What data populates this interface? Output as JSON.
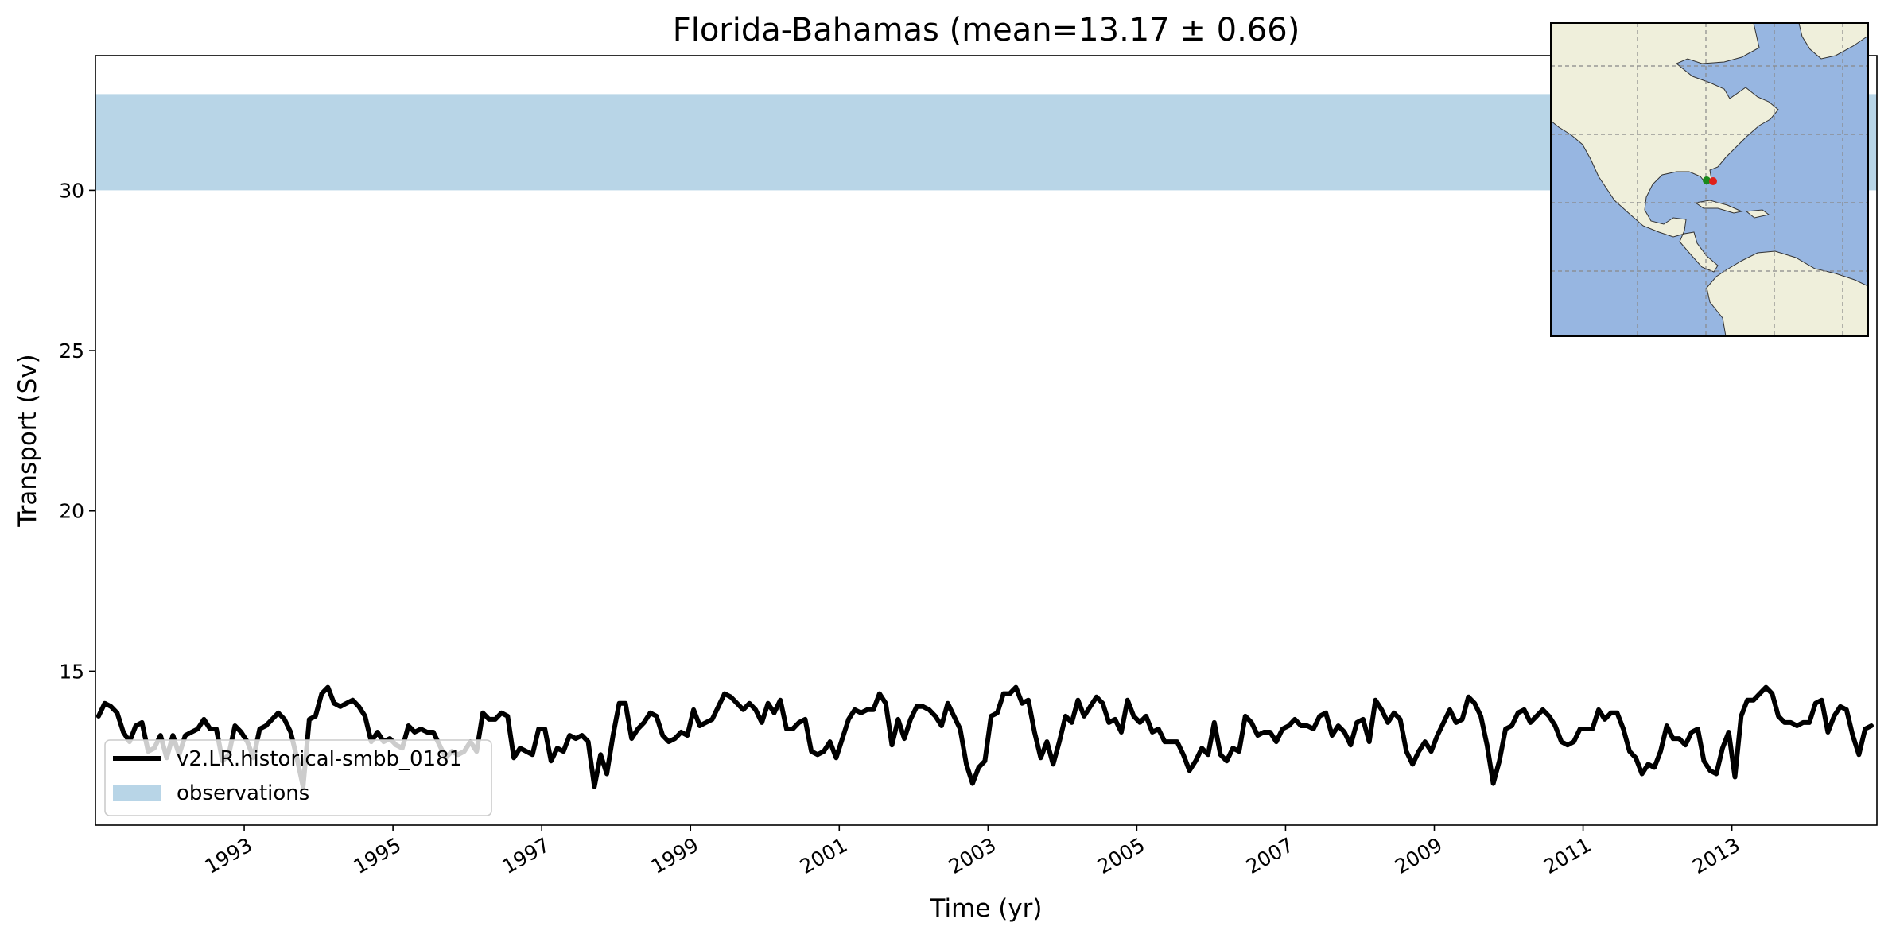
{
  "chart_data": {
    "type": "line",
    "title": "Florida-Bahamas (mean=13.17 ± 0.66)",
    "xlabel": "Time (yr)",
    "ylabel": "Transport (Sv)",
    "xlim": [
      1991.0,
      2014.95
    ],
    "ylim": [
      10.2,
      34.2
    ],
    "x_ticks": [
      1993,
      1995,
      1997,
      1999,
      2001,
      2003,
      2005,
      2007,
      2009,
      2011,
      2013
    ],
    "x_tick_labels": [
      "1993",
      "1995",
      "1997",
      "1999",
      "2001",
      "2003",
      "2005",
      "2007",
      "2009",
      "2011",
      "2013"
    ],
    "x_tick_rotation_deg": 30,
    "y_ticks": [
      15,
      20,
      25,
      30
    ],
    "y_tick_labels": [
      "15",
      "20",
      "25",
      "30"
    ],
    "grid": false,
    "legend": {
      "position": "lower-left"
    },
    "observations": {
      "name": "observations",
      "type": "band",
      "ymin": 30.0,
      "ymax": 33.0,
      "color": "#b8d5e7"
    },
    "series": [
      {
        "name": "v2.LR.historical-smbb_0181",
        "color": "#000000",
        "x_start": 1991.0417,
        "x_step": 0.0833333,
        "values": [
          13.6,
          14.0,
          13.9,
          13.7,
          13.1,
          12.8,
          13.3,
          13.4,
          12.5,
          12.6,
          13.0,
          12.3,
          13.0,
          12.4,
          13.0,
          13.1,
          13.2,
          13.5,
          13.2,
          13.2,
          12.2,
          12.4,
          13.3,
          13.1,
          12.8,
          12.3,
          13.2,
          13.3,
          13.5,
          13.7,
          13.5,
          13.1,
          12.3,
          11.4,
          13.5,
          13.6,
          14.3,
          14.5,
          14.0,
          13.9,
          14.0,
          14.1,
          13.9,
          13.6,
          12.8,
          13.1,
          12.8,
          12.9,
          12.7,
          12.6,
          13.3,
          13.1,
          13.2,
          13.1,
          13.1,
          12.7,
          12.3,
          12.5,
          12.4,
          12.5,
          12.8,
          12.5,
          13.7,
          13.5,
          13.5,
          13.7,
          13.6,
          12.3,
          12.6,
          12.5,
          12.4,
          13.2,
          13.2,
          12.2,
          12.6,
          12.5,
          13.0,
          12.9,
          13.0,
          12.8,
          11.4,
          12.4,
          11.8,
          13.0,
          14.0,
          14.0,
          12.9,
          13.2,
          13.4,
          13.7,
          13.6,
          13.0,
          12.8,
          12.9,
          13.1,
          13.0,
          13.8,
          13.3,
          13.4,
          13.5,
          13.9,
          14.3,
          14.2,
          14.0,
          13.8,
          14.0,
          13.8,
          13.4,
          14.0,
          13.7,
          14.1,
          13.2,
          13.2,
          13.4,
          13.5,
          12.5,
          12.4,
          12.5,
          12.8,
          12.3,
          12.9,
          13.5,
          13.8,
          13.7,
          13.8,
          13.8,
          14.3,
          14.0,
          12.7,
          13.5,
          12.9,
          13.5,
          13.9,
          13.9,
          13.8,
          13.6,
          13.3,
          14.0,
          13.6,
          13.2,
          12.1,
          11.5,
          12.0,
          12.2,
          13.6,
          13.7,
          14.3,
          14.3,
          14.5,
          14.0,
          14.1,
          13.1,
          12.3,
          12.8,
          12.1,
          12.8,
          13.6,
          13.4,
          14.1,
          13.6,
          13.9,
          14.2,
          14.0,
          13.4,
          13.5,
          13.1,
          14.1,
          13.6,
          13.4,
          13.6,
          13.1,
          13.2,
          12.8,
          12.8,
          12.8,
          12.4,
          11.9,
          12.2,
          12.6,
          12.4,
          13.4,
          12.4,
          12.2,
          12.6,
          12.5,
          13.6,
          13.4,
          13.0,
          13.1,
          13.1,
          12.8,
          13.2,
          13.3,
          13.5,
          13.3,
          13.3,
          13.2,
          13.6,
          13.7,
          13.0,
          13.3,
          13.1,
          12.7,
          13.4,
          13.5,
          12.8,
          14.1,
          13.8,
          13.4,
          13.7,
          13.5,
          12.5,
          12.1,
          12.5,
          12.8,
          12.5,
          13.0,
          13.4,
          13.8,
          13.4,
          13.5,
          14.2,
          14.0,
          13.6,
          12.7,
          11.5,
          12.2,
          13.2,
          13.3,
          13.7,
          13.8,
          13.4,
          13.6,
          13.8,
          13.6,
          13.3,
          12.8,
          12.7,
          12.8,
          13.2,
          13.2,
          13.2,
          13.8,
          13.5,
          13.7,
          13.7,
          13.2,
          12.5,
          12.3,
          11.8,
          12.1,
          12.0,
          12.5,
          13.3,
          12.9,
          12.9,
          12.7,
          13.1,
          13.2,
          12.2,
          11.9,
          11.8,
          12.6,
          13.1,
          11.7,
          13.6,
          14.1,
          14.1,
          14.3,
          14.5,
          14.3,
          13.6,
          13.4,
          13.4,
          13.3,
          13.4,
          13.4,
          14.0,
          14.1,
          13.1,
          13.6,
          13.9,
          13.8,
          13.0,
          12.4,
          13.2,
          13.3
        ]
      }
    ],
    "inset_map": {
      "type": "map",
      "markers": [
        {
          "color": "#1a8a1a"
        },
        {
          "color": "#e0201a"
        }
      ],
      "colors": {
        "ocean": "#97b6e1",
        "land": "#efefdb",
        "grid": "#888888"
      }
    }
  }
}
